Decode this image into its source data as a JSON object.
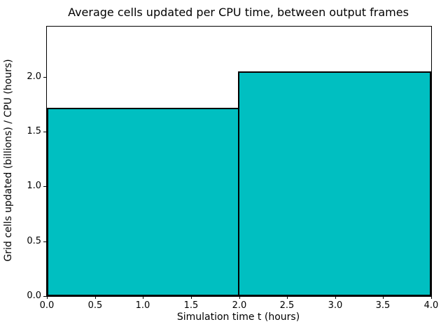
{
  "chart_data": {
    "type": "bar",
    "title": "Average cells updated per CPU time, between output frames",
    "xlabel": "Simulation time t (hours)",
    "ylabel": "Grid cells updated (billions) / CPU (hours)",
    "bars": [
      {
        "x_start": 0.0,
        "x_end": 2.0,
        "value": 1.72
      },
      {
        "x_start": 2.0,
        "x_end": 4.0,
        "value": 2.05
      }
    ],
    "xlim": [
      0.0,
      4.0
    ],
    "ylim": [
      0.0,
      2.46
    ],
    "x_ticks": [
      0.0,
      0.5,
      1.0,
      1.5,
      2.0,
      2.5,
      3.0,
      3.5,
      4.0
    ],
    "x_tick_labels": [
      "0.0",
      "0.5",
      "1.0",
      "1.5",
      "2.0",
      "2.5",
      "3.0",
      "3.5",
      "4.0"
    ],
    "y_ticks": [
      0.0,
      0.5,
      1.0,
      1.5,
      2.0
    ],
    "y_tick_labels": [
      "0.0",
      "0.5",
      "1.0",
      "1.5",
      "2.0"
    ],
    "bar_fill_color": "#00bfc1",
    "bar_edge_color": "#000000",
    "grid": false,
    "legend": null
  }
}
